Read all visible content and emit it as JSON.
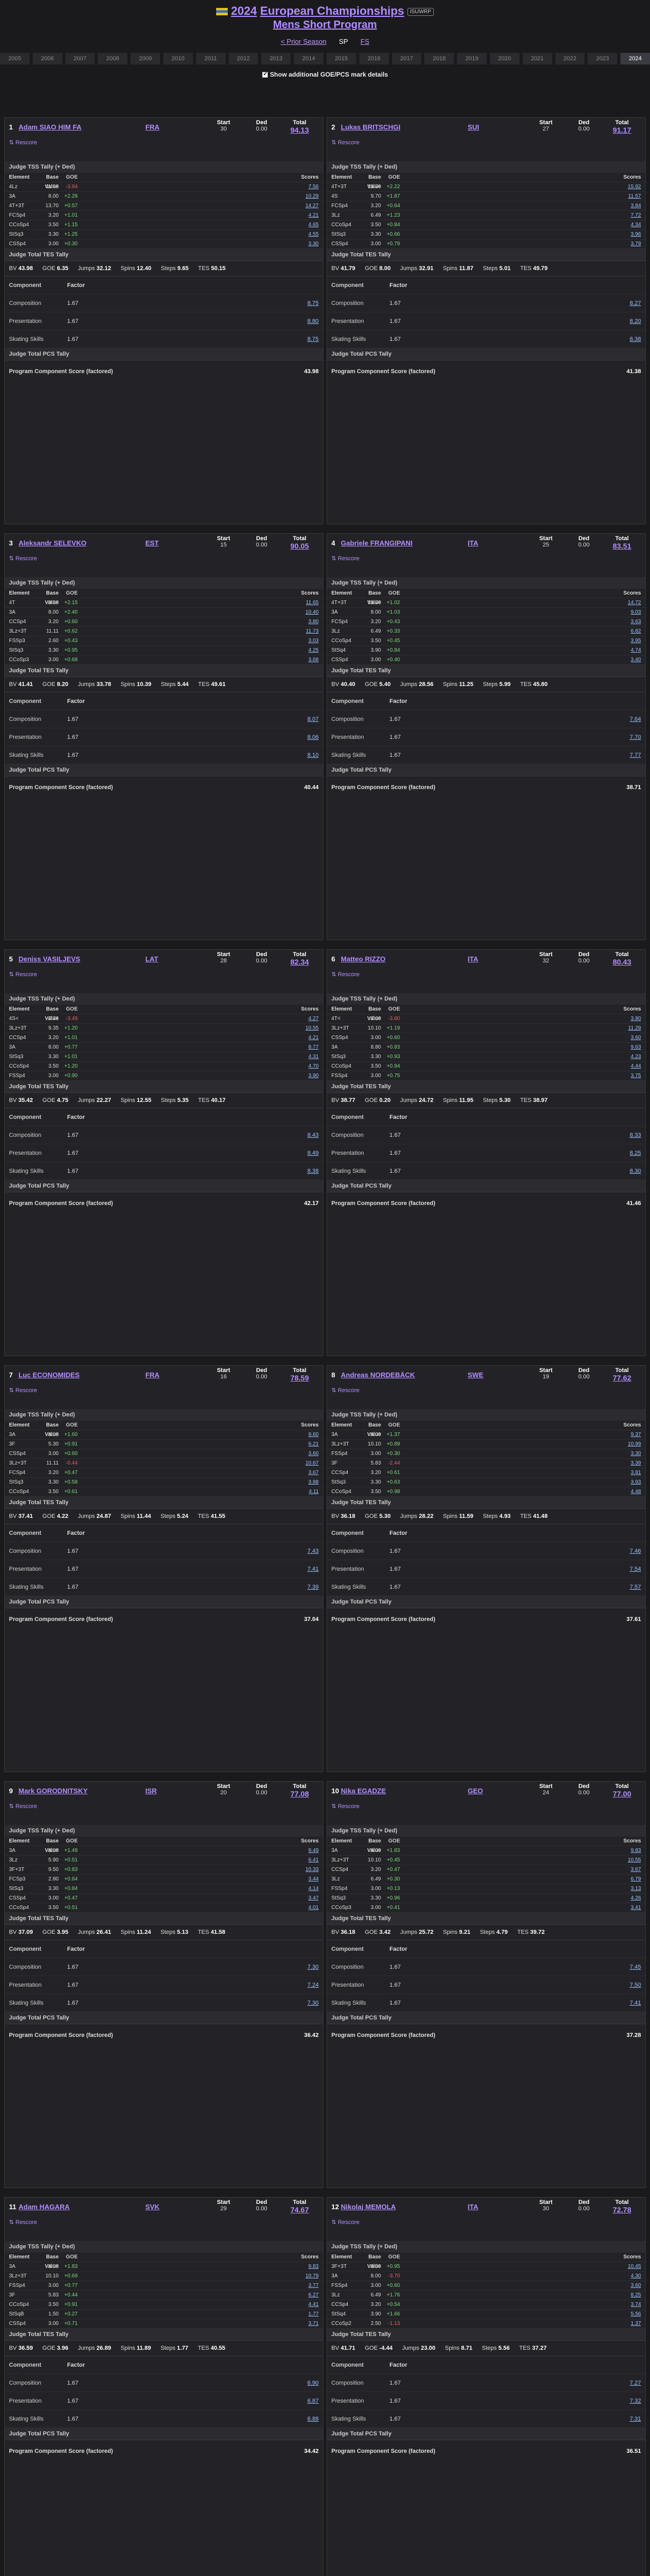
{
  "header": {
    "year": "2024",
    "event": "European Championships",
    "badge": "ISUWRP",
    "segment": "Mens Short Program"
  },
  "nav": {
    "prior": "< Prior Season",
    "sp": "SP",
    "fs": "FS"
  },
  "years": [
    "2005",
    "2006",
    "2007",
    "2008",
    "2009",
    "2010",
    "2011",
    "2012",
    "2013",
    "2014",
    "2015",
    "2016",
    "2017",
    "2018",
    "2019",
    "2020",
    "2021",
    "2022",
    "2023",
    "2024"
  ],
  "toggle_label": "Show additional GOE/PCS mark details",
  "labels": {
    "rescore": "⇅ Rescore",
    "start": "Start",
    "ded": "Ded",
    "total": "Total",
    "element": "Element",
    "base": "Base Value",
    "goe": "GOE",
    "scores": "Scores",
    "judge_tss": "Judge TSS Tally (+ Ded)",
    "judge_tes": "Judge Total TES Tally",
    "bv": "BV",
    "goe_short": "GOE",
    "jumps": "Jumps",
    "spins": "Spins",
    "steps": "Steps",
    "tes": "TES",
    "component": "Component",
    "factor": "Factor",
    "composition": "Composition",
    "presentation": "Presentation",
    "skating_skills": "Skating Skills",
    "judge_pcs": "Judge Total PCS Tally",
    "pcs": "Program Component Score (factored)"
  },
  "skaters": [
    {
      "rank": "1",
      "name": "Adam SIAO HIM FA",
      "nat": "FRA",
      "start": "30",
      "ded": "0.00",
      "total": "94.13",
      "tes": "50.15",
      "pcs": "43.98",
      "bv": "43.98",
      "goe": "6.35",
      "jumps": "32.12",
      "spins": "12.40",
      "steps": "9.65",
      "elements": [
        {
          "el": "4Lz",
          "bv": "11.50",
          "goe": "-3.94",
          "sc": "7.56"
        },
        {
          "el": "3A",
          "bv": "8.00",
          "goe": "+2.29",
          "sc": "10.29"
        },
        {
          "el": "4T+3T",
          "bv": "13.70",
          "goe": "+0.57",
          "sc": "14.27"
        },
        {
          "el": "FCSp4",
          "bv": "3.20",
          "goe": "+1.01",
          "sc": "4.21"
        },
        {
          "el": "CCoSp4",
          "bv": "3.50",
          "goe": "+1.15",
          "sc": "4.65"
        },
        {
          "el": "StSq3",
          "bv": "3.30",
          "goe": "+1.25",
          "sc": "4.55"
        },
        {
          "el": "CSSp4",
          "bv": "3.00",
          "goe": "+0.30",
          "sc": "3.30"
        }
      ],
      "pcs_comp": "8.75",
      "pcs_pres": "8.80",
      "pcs_skill": "8.75"
    },
    {
      "rank": "2",
      "name": "Lukas BRITSCHGI",
      "nat": "SUI",
      "start": "27",
      "ded": "0.00",
      "total": "91.17",
      "tes": "49.79",
      "pcs": "41.38",
      "bv": "41.79",
      "goe": "8.00",
      "jumps": "32.91",
      "spins": "11.87",
      "steps": "5.01",
      "elements": [
        {
          "el": "4T+3T",
          "bv": "13.70",
          "goe": "+2.22",
          "sc": "15.92"
        },
        {
          "el": "4S",
          "bv": "9.70",
          "goe": "+1.87",
          "sc": "11.57"
        },
        {
          "el": "FCSp4",
          "bv": "3.20",
          "goe": "+0.64",
          "sc": "3.84"
        },
        {
          "el": "3Lz",
          "bv": "6.49",
          "goe": "+1.23",
          "sc": "7.72"
        },
        {
          "el": "CCoSp4",
          "bv": "3.50",
          "goe": "+0.84",
          "sc": "4.34"
        },
        {
          "el": "StSq3",
          "bv": "3.30",
          "goe": "+0.66",
          "sc": "3.96"
        },
        {
          "el": "CSSp4",
          "bv": "3.00",
          "goe": "+0.79",
          "sc": "3.79"
        }
      ],
      "pcs_comp": "8.27",
      "pcs_pres": "8.20",
      "pcs_skill": "8.38"
    },
    {
      "rank": "3",
      "name": "Aleksandr SELEVKO",
      "nat": "EST",
      "start": "15",
      "ded": "0.00",
      "total": "90.05",
      "tes": "49.61",
      "pcs": "40.44",
      "bv": "41.41",
      "goe": "8.20",
      "jumps": "33.78",
      "spins": "10.39",
      "steps": "5.44",
      "elements": [
        {
          "el": "4T",
          "bv": "9.50",
          "goe": "+2.15",
          "sc": "11.65"
        },
        {
          "el": "3A",
          "bv": "8.00",
          "goe": "+2.40",
          "sc": "10.40"
        },
        {
          "el": "CCSp4",
          "bv": "3.20",
          "goe": "+0.60",
          "sc": "3.80"
        },
        {
          "el": "3Lz+3T",
          "bv": "11.11",
          "goe": "+0.62",
          "sc": "11.73"
        },
        {
          "el": "FSSp3",
          "bv": "2.60",
          "goe": "+0.43",
          "sc": "3.03"
        },
        {
          "el": "StSq3",
          "bv": "3.30",
          "goe": "+0.95",
          "sc": "4.25"
        },
        {
          "el": "CCoSp3",
          "bv": "3.00",
          "goe": "+0.68",
          "sc": "3.68"
        }
      ],
      "pcs_comp": "8.07",
      "pcs_pres": "8.06",
      "pcs_skill": "8.10"
    },
    {
      "rank": "4",
      "name": "Gabriele FRANGIPANI",
      "nat": "ITA",
      "start": "25",
      "ded": "0.00",
      "total": "83.51",
      "tes": "45.80",
      "pcs": "38.71",
      "bv": "40.40",
      "goe": "5.40",
      "jumps": "28.56",
      "spins": "11.25",
      "steps": "5.99",
      "elements": [
        {
          "el": "4T+3T",
          "bv": "13.70",
          "goe": "+1.02",
          "sc": "14.72"
        },
        {
          "el": "3A",
          "bv": "8.00",
          "goe": "+1.03",
          "sc": "9.03"
        },
        {
          "el": "FCSp4",
          "bv": "3.20",
          "goe": "+0.43",
          "sc": "3.63"
        },
        {
          "el": "3Lz",
          "bv": "6.49",
          "goe": "+0.33",
          "sc": "6.82"
        },
        {
          "el": "CCoSp4",
          "bv": "3.50",
          "goe": "+0.45",
          "sc": "3.95"
        },
        {
          "el": "StSq4",
          "bv": "3.90",
          "goe": "+0.84",
          "sc": "4.74"
        },
        {
          "el": "CSSp4",
          "bv": "3.00",
          "goe": "+0.40",
          "sc": "3.40"
        }
      ],
      "pcs_comp": "7.64",
      "pcs_pres": "7.70",
      "pcs_skill": "7.77"
    },
    {
      "rank": "5",
      "name": "Deniss VASILJEVS",
      "nat": "LAT",
      "start": "28",
      "ded": "0.00",
      "total": "82.34",
      "tes": "40.17",
      "pcs": "42.17",
      "bv": "35.42",
      "goe": "4.75",
      "jumps": "22.27",
      "spins": "12.55",
      "steps": "5.35",
      "elements": [
        {
          "el": "4S<",
          "bv": "7.76",
          "goe": "-3.49",
          "sc": "4.27"
        },
        {
          "el": "3Lz+3T",
          "bv": "9.35",
          "goe": "+1.20",
          "sc": "10.55"
        },
        {
          "el": "CCSp4",
          "bv": "3.20",
          "goe": "+1.01",
          "sc": "4.21"
        },
        {
          "el": "3A",
          "bv": "8.00",
          "goe": "+0.77",
          "sc": "8.77"
        },
        {
          "el": "StSq3",
          "bv": "3.30",
          "goe": "+1.01",
          "sc": "4.31"
        },
        {
          "el": "CCoSp4",
          "bv": "3.50",
          "goe": "+1.20",
          "sc": "4.70"
        },
        {
          "el": "FSSp4",
          "bv": "3.00",
          "goe": "+0.90",
          "sc": "3.90"
        }
      ],
      "pcs_comp": "8.43",
      "pcs_pres": "8.49",
      "pcs_skill": "8.38"
    },
    {
      "rank": "6",
      "name": "Matteo RIZZO",
      "nat": "ITA",
      "start": "32",
      "ded": "0.00",
      "total": "80.43",
      "tes": "38.97",
      "pcs": "41.46",
      "bv": "38.77",
      "goe": "0.20",
      "jumps": "24.72",
      "spins": "11.95",
      "steps": "5.30",
      "elements": [
        {
          "el": "4T<",
          "bv": "7.60",
          "goe": "-3.80",
          "sc": "3.80"
        },
        {
          "el": "3Lz+3T",
          "bv": "10.10",
          "goe": "+1.19",
          "sc": "11.29"
        },
        {
          "el": "CSSp4",
          "bv": "3.00",
          "goe": "+0.60",
          "sc": "3.60"
        },
        {
          "el": "3A",
          "bv": "8.80",
          "goe": "+0.83",
          "sc": "9.63"
        },
        {
          "el": "StSq3",
          "bv": "3.30",
          "goe": "+0.93",
          "sc": "4.23"
        },
        {
          "el": "CCoSp4",
          "bv": "3.50",
          "goe": "+0.94",
          "sc": "4.44"
        },
        {
          "el": "FSSp4",
          "bv": "3.00",
          "goe": "+0.75",
          "sc": "3.75"
        }
      ],
      "pcs_comp": "8.33",
      "pcs_pres": "8.25",
      "pcs_skill": "8.30"
    },
    {
      "rank": "7",
      "name": "Luc ECONOMIDES",
      "nat": "FRA",
      "start": "16",
      "ded": "0.00",
      "total": "78.59",
      "tes": "41.55",
      "pcs": "37.04",
      "bv": "37.41",
      "goe": "4.22",
      "jumps": "24.87",
      "spins": "11.44",
      "steps": "5.24",
      "elements": [
        {
          "el": "3A",
          "bv": "8.00",
          "goe": "+1.60",
          "sc": "9.60"
        },
        {
          "el": "3F",
          "bv": "5.30",
          "goe": "+0.91",
          "sc": "6.21"
        },
        {
          "el": "CSSp4",
          "bv": "3.00",
          "goe": "+0.60",
          "sc": "3.60"
        },
        {
          "el": "3Lz+3T",
          "bv": "11.11",
          "goe": "-0.44",
          "sc": "10.67"
        },
        {
          "el": "FCSp4",
          "bv": "3.20",
          "goe": "+0.47",
          "sc": "3.67"
        },
        {
          "el": "StSq3",
          "bv": "3.30",
          "goe": "+0.58",
          "sc": "3.88"
        },
        {
          "el": "CCoSp4",
          "bv": "3.50",
          "goe": "+0.61",
          "sc": "4.11"
        }
      ],
      "pcs_comp": "7.43",
      "pcs_pres": "7.41",
      "pcs_skill": "7.39"
    },
    {
      "rank": "8",
      "name": "Andreas NORDEBÄCK",
      "nat": "SWE",
      "start": "19",
      "ded": "0.00",
      "total": "77.62",
      "tes": "41.48",
      "pcs": "37.61",
      "bv": "36.18",
      "goe": "5.30",
      "jumps": "28.22",
      "spins": "11.59",
      "steps": "4.93",
      "elements": [
        {
          "el": "3A",
          "bv": "8.00",
          "goe": "+1.37",
          "sc": "9.37"
        },
        {
          "el": "3Lz+3T",
          "bv": "10.10",
          "goe": "+0.89",
          "sc": "10.99"
        },
        {
          "el": "FSSp4",
          "bv": "3.00",
          "goe": "+0.30",
          "sc": "3.30"
        },
        {
          "el": "3F",
          "bv": "5.83",
          "goe": "-2.44",
          "sc": "3.39"
        },
        {
          "el": "CCSp4",
          "bv": "3.20",
          "goe": "+0.61",
          "sc": "3.81"
        },
        {
          "el": "StSq3",
          "bv": "3.30",
          "goe": "+0.63",
          "sc": "3.93"
        },
        {
          "el": "CCoSp4",
          "bv": "3.50",
          "goe": "+0.98",
          "sc": "4.48"
        }
      ],
      "pcs_comp": "7.46",
      "pcs_pres": "7.54",
      "pcs_skill": "7.57"
    },
    {
      "rank": "9",
      "name": "Mark GORODNITSKY",
      "nat": "ISR",
      "start": "20",
      "ded": "0.00",
      "total": "77.08",
      "tes": "41.58",
      "pcs": "36.42",
      "bv": "37.09",
      "goe": "3.95",
      "jumps": "26.41",
      "spins": "11.24",
      "steps": "5.13",
      "elements": [
        {
          "el": "3A",
          "bv": "8.00",
          "goe": "+1.49",
          "sc": "9.49"
        },
        {
          "el": "3Lz",
          "bv": "5.90",
          "goe": "+0.51",
          "sc": "6.41"
        },
        {
          "el": "3F+3T",
          "bv": "9.50",
          "goe": "+0.83",
          "sc": "10.33"
        },
        {
          "el": "FCSp3",
          "bv": "2.80",
          "goe": "+0.64",
          "sc": "3.44"
        },
        {
          "el": "StSq3",
          "bv": "3.30",
          "goe": "+0.84",
          "sc": "4.14"
        },
        {
          "el": "CSSp4",
          "bv": "3.00",
          "goe": "+0.47",
          "sc": "3.47"
        },
        {
          "el": "CCoSp4",
          "bv": "3.50",
          "goe": "+0.51",
          "sc": "4.01"
        }
      ],
      "pcs_comp": "7.30",
      "pcs_pres": "7.24",
      "pcs_skill": "7.30"
    },
    {
      "rank": "10",
      "name": "Nika EGADZE",
      "nat": "GEO",
      "start": "24",
      "ded": "0.00",
      "total": "77.00",
      "tes": "39.72",
      "pcs": "37.28",
      "bv": "36.18",
      "goe": "3.42",
      "jumps": "25.72",
      "spins": "9.21",
      "steps": "4.79",
      "elements": [
        {
          "el": "3A",
          "bv": "8.00",
          "goe": "+1.83",
          "sc": "9.83"
        },
        {
          "el": "3Lz+3T",
          "bv": "10.10",
          "goe": "+0.45",
          "sc": "10.55"
        },
        {
          "el": "CCSp4",
          "bv": "3.20",
          "goe": "+0.47",
          "sc": "3.67"
        },
        {
          "el": "3Lz",
          "bv": "6.49",
          "goe": "+0.30",
          "sc": "6.79"
        },
        {
          "el": "FSSp4",
          "bv": "3.00",
          "goe": "+0.13",
          "sc": "3.13"
        },
        {
          "el": "StSq3",
          "bv": "3.30",
          "goe": "+0.96",
          "sc": "4.26"
        },
        {
          "el": "CCoSp3",
          "bv": "3.00",
          "goe": "+0.41",
          "sc": "3.41"
        }
      ],
      "pcs_comp": "7.45",
      "pcs_pres": "7.50",
      "pcs_skill": "7.41"
    },
    {
      "rank": "11",
      "name": "Adam HAGARA",
      "nat": "SVK",
      "start": "29",
      "ded": "0.00",
      "total": "74.67",
      "tes": "40.55",
      "pcs": "34.42",
      "bv": "36.59",
      "goe": "3.96",
      "jumps": "26.89",
      "spins": "11.89",
      "steps": "1.77",
      "elements": [
        {
          "el": "3A",
          "bv": "8.00",
          "goe": "+1.83",
          "sc": "9.83"
        },
        {
          "el": "3Lz+3T",
          "bv": "10.10",
          "goe": "+0.69",
          "sc": "10.79"
        },
        {
          "el": "FSSp4",
          "bv": "3.00",
          "goe": "+0.77",
          "sc": "3.77"
        },
        {
          "el": "3F",
          "bv": "5.83",
          "goe": "+0.44",
          "sc": "6.27"
        },
        {
          "el": "CCoSp4",
          "bv": "3.50",
          "goe": "+0.91",
          "sc": "4.41"
        },
        {
          "el": "StSqB",
          "bv": "1.50",
          "goe": "+0.27",
          "sc": "1.77"
        },
        {
          "el": "CSSp4",
          "bv": "3.00",
          "goe": "+0.71",
          "sc": "3.71"
        }
      ],
      "pcs_comp": "6.90",
      "pcs_pres": "6.87",
      "pcs_skill": "6.88"
    },
    {
      "rank": "12",
      "name": "Nikolaj MEMOLA",
      "nat": "ITA",
      "start": "30",
      "ded": "0.00",
      "total": "72.78",
      "tes": "37.27",
      "pcs": "36.51",
      "bv": "41.71",
      "goe": "-4.44",
      "jumps": "23.00",
      "spins": "8.71",
      "steps": "5.56",
      "elements": [
        {
          "el": "3F+3T",
          "bv": "9.50",
          "goe": "+0.95",
          "sc": "10.45"
        },
        {
          "el": "3A",
          "bv": "8.00",
          "goe": "-3.70",
          "sc": "4.30"
        },
        {
          "el": "FSSp4",
          "bv": "3.00",
          "goe": "+0.60",
          "sc": "3.60"
        },
        {
          "el": "3Lz",
          "bv": "6.49",
          "goe": "+1.76",
          "sc": "8.25"
        },
        {
          "el": "CCSp4",
          "bv": "3.20",
          "goe": "+0.54",
          "sc": "3.74"
        },
        {
          "el": "StSq4",
          "bv": "3.90",
          "goe": "+1.66",
          "sc": "5.56"
        },
        {
          "el": "CCoSp2",
          "bv": "2.50",
          "goe": "-1.13",
          "sc": "1.37"
        }
      ],
      "pcs_comp": "7.27",
      "pcs_pres": "7.32",
      "pcs_skill": "7.31"
    }
  ]
}
